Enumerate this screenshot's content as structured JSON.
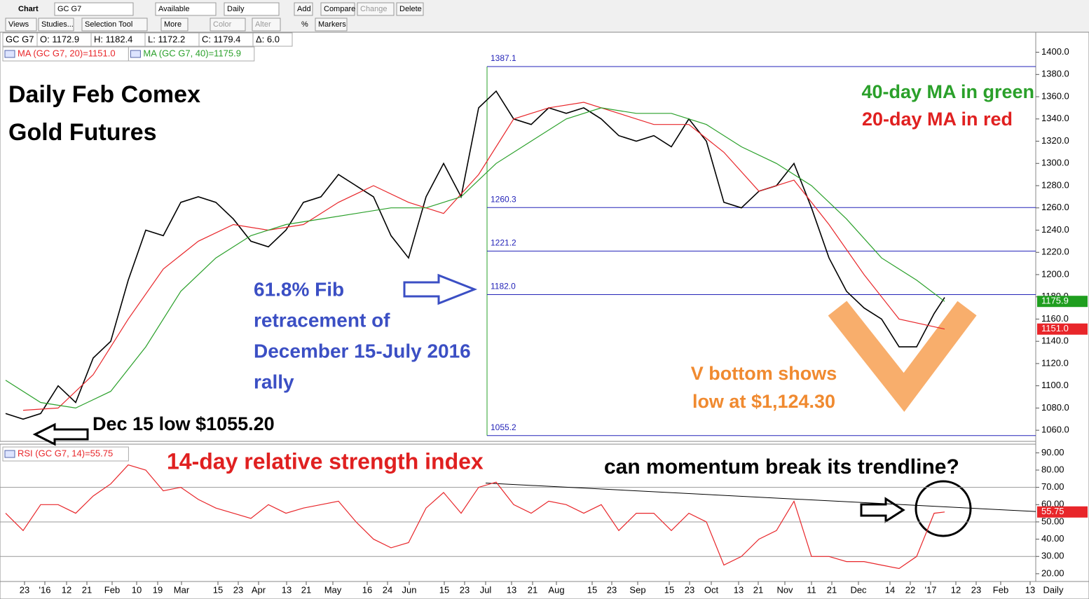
{
  "toolbar": {
    "row1": [
      "Chart",
      "GC G7",
      "Available",
      "Daily",
      "Add",
      "Compare",
      "Change",
      "Delete"
    ],
    "row2": [
      "Views",
      "Studies...",
      "Selection Tool",
      "More",
      "Color",
      "Alter",
      "%",
      "Markers"
    ],
    "period_label": "Daily"
  },
  "chart_data": [
    {
      "type": "line",
      "readout": [
        "GC G7",
        "O: 1172.9",
        "H: 1182.4",
        "L: 1172.2",
        "C: 1179.4",
        "Δ: 6.0"
      ],
      "xlim": [
        -1.6,
        294
      ],
      "ylim": [
        1050,
        1418
      ],
      "yticks": [
        {
          "value": 1060,
          "label": "1060.0"
        },
        {
          "value": 1080,
          "label": "1080.0"
        },
        {
          "value": 1100,
          "label": "1100.0"
        },
        {
          "value": 1120,
          "label": "1120.0"
        },
        {
          "value": 1140,
          "label": "1140.0"
        },
        {
          "value": 1160,
          "label": "1160.0"
        },
        {
          "value": 1180,
          "label": "1180.0"
        },
        {
          "value": 1200,
          "label": "1200.0"
        },
        {
          "value": 1220,
          "label": "1220.0"
        },
        {
          "value": 1240,
          "label": "1240.0"
        },
        {
          "value": 1260,
          "label": "1260.0"
        },
        {
          "value": 1280,
          "label": "1280.0"
        },
        {
          "value": 1300,
          "label": "1300.0"
        },
        {
          "value": 1320,
          "label": "1320.0"
        },
        {
          "value": 1340,
          "label": "1340.0"
        },
        {
          "value": 1360,
          "label": "1360.0"
        },
        {
          "value": 1380,
          "label": "1380.0"
        },
        {
          "value": 1400,
          "label": "1400.0"
        }
      ],
      "series": [
        {
          "name": "GC G7",
          "color": "#000000",
          "x": [
            0,
            5,
            10,
            15,
            20,
            25,
            30,
            35,
            40,
            45,
            50,
            55,
            60,
            65,
            70,
            75,
            80,
            85,
            90,
            95,
            100,
            105,
            110,
            115,
            120,
            125,
            130,
            135,
            140,
            145,
            150,
            155,
            160,
            165,
            170,
            175,
            180,
            185,
            190,
            195,
            200,
            205,
            210,
            215,
            220,
            225,
            230,
            235,
            240,
            245,
            250,
            255,
            260,
            265,
            268
          ],
          "values": [
            1075,
            1070,
            1075,
            1100,
            1085,
            1125,
            1140,
            1195,
            1240,
            1235,
            1265,
            1270,
            1265,
            1250,
            1230,
            1225,
            1240,
            1265,
            1270,
            1290,
            1280,
            1270,
            1235,
            1215,
            1270,
            1300,
            1270,
            1350,
            1365,
            1340,
            1335,
            1350,
            1345,
            1350,
            1340,
            1325,
            1320,
            1325,
            1315,
            1340,
            1320,
            1265,
            1260,
            1275,
            1280,
            1300,
            1260,
            1215,
            1185,
            1170,
            1160,
            1135,
            1135,
            1165,
            1179.4
          ]
        },
        {
          "name": "MA (GC G7, 20)=1151.0",
          "color": "#e8262a",
          "x": [
            5,
            15,
            25,
            35,
            45,
            55,
            65,
            75,
            85,
            95,
            105,
            115,
            125,
            135,
            145,
            155,
            165,
            175,
            185,
            195,
            205,
            215,
            225,
            235,
            245,
            255,
            268
          ],
          "values": [
            1078,
            1080,
            1110,
            1160,
            1205,
            1230,
            1245,
            1240,
            1245,
            1265,
            1280,
            1265,
            1255,
            1290,
            1340,
            1350,
            1355,
            1345,
            1335,
            1335,
            1310,
            1275,
            1285,
            1245,
            1200,
            1160,
            1151
          ]
        },
        {
          "name": "MA (GC G7, 40)=1175.9",
          "color": "#2aa02a",
          "x": [
            0,
            10,
            20,
            30,
            40,
            50,
            60,
            70,
            80,
            90,
            100,
            110,
            120,
            130,
            140,
            150,
            160,
            170,
            180,
            190,
            200,
            210,
            220,
            230,
            240,
            250,
            260,
            268
          ],
          "values": [
            1105,
            1085,
            1080,
            1095,
            1135,
            1185,
            1215,
            1235,
            1245,
            1250,
            1255,
            1260,
            1260,
            1270,
            1300,
            1320,
            1340,
            1350,
            1345,
            1345,
            1335,
            1315,
            1300,
            1280,
            1250,
            1215,
            1195,
            1175.9
          ]
        }
      ],
      "fib_start_x": 137.4,
      "fib_levels": [
        {
          "value": 1387.1,
          "label": "1387.1"
        },
        {
          "value": 1260.3,
          "label": "1260.3"
        },
        {
          "value": 1221.2,
          "label": "1221.2"
        },
        {
          "value": 1182,
          "label": "1182.0"
        },
        {
          "value": 1055.2,
          "label": "1055.2"
        }
      ],
      "badges": [
        {
          "value": 1175.9,
          "label": "1175.9",
          "color": "#1f9e1f"
        },
        {
          "value": 1151,
          "label": "1151.0",
          "color": "#e8262a"
        }
      ],
      "annotations": [
        {
          "lines": [
            "Daily Feb Comex",
            "Gold Futures"
          ],
          "color": "#000000"
        },
        {
          "lines": [
            "40-day MA in green"
          ],
          "color": "#2aa02a"
        },
        {
          "lines": [
            "20-day MA in red"
          ],
          "color": "#e02020"
        },
        {
          "lines": [
            "61.8% Fib",
            "retracement of",
            "December 15-July 2016",
            "rally"
          ],
          "color": "#3b4fc4"
        },
        {
          "lines": [
            "V bottom shows",
            "low at $1,124.30"
          ],
          "color": "#f08a30"
        },
        {
          "lines": [
            "Dec 15 low $1055.20"
          ],
          "color": "#000000"
        }
      ]
    },
    {
      "type": "line",
      "xlim": [
        -1.6,
        294
      ],
      "ylim": [
        15.5,
        95
      ],
      "yticks": [
        {
          "value": 20,
          "label": "20.00"
        },
        {
          "value": 30,
          "label": "30.00"
        },
        {
          "value": 40,
          "label": "40.00"
        },
        {
          "value": 50,
          "label": "50.00"
        },
        {
          "value": 60,
          "label": "60.00"
        },
        {
          "value": 70,
          "label": "70.00"
        },
        {
          "value": 80,
          "label": "80.00"
        },
        {
          "value": 90,
          "label": "90.00"
        }
      ],
      "levels": [
        30,
        50,
        70
      ],
      "xticks": [
        {
          "value": 5.4,
          "label": "23"
        },
        {
          "value": 11.2,
          "label": "'16"
        },
        {
          "value": 17.4,
          "label": "12"
        },
        {
          "value": 23.2,
          "label": "21"
        },
        {
          "value": 30.4,
          "label": "Feb"
        },
        {
          "value": 37.4,
          "label": "10"
        },
        {
          "value": 43.4,
          "label": "19"
        },
        {
          "value": 50.2,
          "label": "Mar"
        },
        {
          "value": 60.6,
          "label": "15"
        },
        {
          "value": 66.4,
          "label": "23"
        },
        {
          "value": 72.2,
          "label": "Apr"
        },
        {
          "value": 80.2,
          "label": "13"
        },
        {
          "value": 85.8,
          "label": "21"
        },
        {
          "value": 93.4,
          "label": "May"
        },
        {
          "value": 103.2,
          "label": "16"
        },
        {
          "value": 109,
          "label": "24"
        },
        {
          "value": 115.2,
          "label": "Jun"
        },
        {
          "value": 125.2,
          "label": "15"
        },
        {
          "value": 131,
          "label": "23"
        },
        {
          "value": 137,
          "label": "Jul"
        },
        {
          "value": 144.4,
          "label": "13"
        },
        {
          "value": 150.4,
          "label": "21"
        },
        {
          "value": 157.2,
          "label": "Aug"
        },
        {
          "value": 167.4,
          "label": "15"
        },
        {
          "value": 173,
          "label": "23"
        },
        {
          "value": 180.4,
          "label": "Sep"
        },
        {
          "value": 189.4,
          "label": "15"
        },
        {
          "value": 195.2,
          "label": "23"
        },
        {
          "value": 201.4,
          "label": "Oct"
        },
        {
          "value": 209.2,
          "label": "13"
        },
        {
          "value": 214.8,
          "label": "21"
        },
        {
          "value": 222.4,
          "label": "Nov"
        },
        {
          "value": 230,
          "label": "11"
        },
        {
          "value": 235.8,
          "label": "21"
        },
        {
          "value": 243.4,
          "label": "Dec"
        },
        {
          "value": 252.4,
          "label": "14"
        },
        {
          "value": 258.2,
          "label": "22"
        },
        {
          "value": 264,
          "label": "'17"
        },
        {
          "value": 271.2,
          "label": "12"
        },
        {
          "value": 277,
          "label": "23"
        },
        {
          "value": 284,
          "label": "Feb"
        },
        {
          "value": 292.4,
          "label": "13"
        }
      ],
      "series": [
        {
          "name": "RSI (GC G7, 14)=55.75",
          "color": "#e8262a",
          "x": [
            0,
            5,
            10,
            15,
            20,
            25,
            30,
            35,
            40,
            45,
            50,
            55,
            60,
            65,
            70,
            75,
            80,
            85,
            90,
            95,
            100,
            105,
            110,
            115,
            120,
            125,
            130,
            135,
            140,
            145,
            150,
            155,
            160,
            165,
            170,
            175,
            180,
            185,
            190,
            195,
            200,
            205,
            210,
            215,
            220,
            225,
            230,
            235,
            240,
            245,
            250,
            255,
            260,
            265,
            268
          ],
          "values": [
            55,
            45,
            60,
            60,
            55,
            65,
            72,
            83,
            80,
            68,
            70,
            63,
            58,
            55,
            52,
            60,
            55,
            58,
            60,
            62,
            50,
            40,
            35,
            38,
            58,
            67,
            55,
            70,
            73,
            60,
            55,
            62,
            60,
            55,
            60,
            45,
            55,
            55,
            45,
            55,
            50,
            25,
            30,
            40,
            45,
            62,
            30,
            30,
            27,
            27,
            25,
            23,
            30,
            55,
            55.75
          ]
        }
      ],
      "trendline": {
        "x": [
          137,
          294
        ],
        "values": [
          72.5,
          56
        ]
      },
      "badges": [
        {
          "value": 55.75,
          "label": "55.75",
          "color": "#e8262a"
        }
      ],
      "annotations": [
        {
          "lines": [
            "14-day relative strength index"
          ],
          "color": "#e02020"
        },
        {
          "lines": [
            "can momentum break its trendline?"
          ],
          "color": "#000000"
        }
      ]
    }
  ]
}
